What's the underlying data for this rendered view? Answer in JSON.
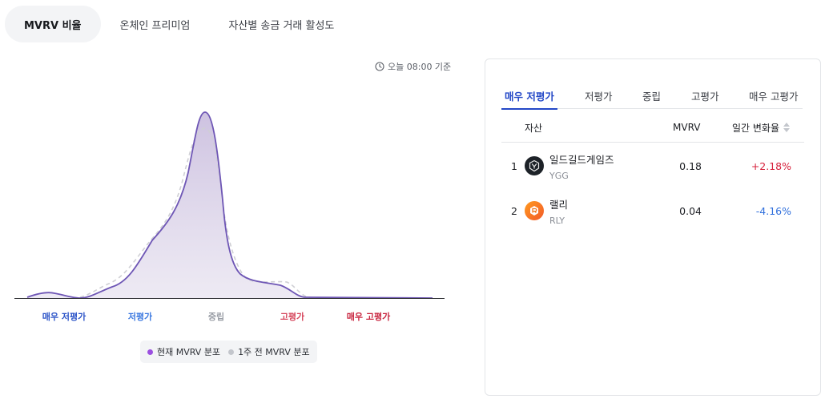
{
  "tabs": [
    {
      "label": "MVRV 비율",
      "active": true
    },
    {
      "label": "온체인 프리미엄",
      "active": false
    },
    {
      "label": "자산별 송금 거래 활성도",
      "active": false
    }
  ],
  "as_of": "오늘 08:00 기준",
  "chart_data": {
    "type": "area",
    "categories": [
      {
        "label": "매우 저평가",
        "color": "#2d55c8"
      },
      {
        "label": "저평가",
        "color": "#3b78e0"
      },
      {
        "label": "중립",
        "color": "#9a9ea6"
      },
      {
        "label": "고평가",
        "color": "#d6465c"
      },
      {
        "label": "매우 고평가",
        "color": "#c8253f"
      }
    ],
    "series": [
      {
        "name": "현재 MVRV 분포",
        "color": "#9b4fe0",
        "line_color": "#6e56b5"
      },
      {
        "name": "1주 전 MVRV 분포",
        "color": "#c3c6cc",
        "line_color": "#cfcfd4"
      }
    ],
    "legend_position": "bottom"
  },
  "panel": {
    "tabs": [
      {
        "label": "매우 저평가",
        "active": true
      },
      {
        "label": "저평가",
        "active": false
      },
      {
        "label": "중립",
        "active": false
      },
      {
        "label": "고평가",
        "active": false
      },
      {
        "label": "매우 고평가",
        "active": false
      }
    ],
    "columns": {
      "asset": "자산",
      "mvrv": "MVRV",
      "change": "일간 변화율"
    },
    "rows": [
      {
        "rank": "1",
        "name": "일드길드게임즈",
        "symbol": "YGG",
        "icon": "ygg-logo-icon",
        "mvrv": "0.18",
        "change": "+2.18%",
        "direction": "up"
      },
      {
        "rank": "2",
        "name": "랠리",
        "symbol": "RLY",
        "icon": "rly-logo-icon",
        "mvrv": "0.04",
        "change": "-4.16%",
        "direction": "down"
      }
    ]
  }
}
